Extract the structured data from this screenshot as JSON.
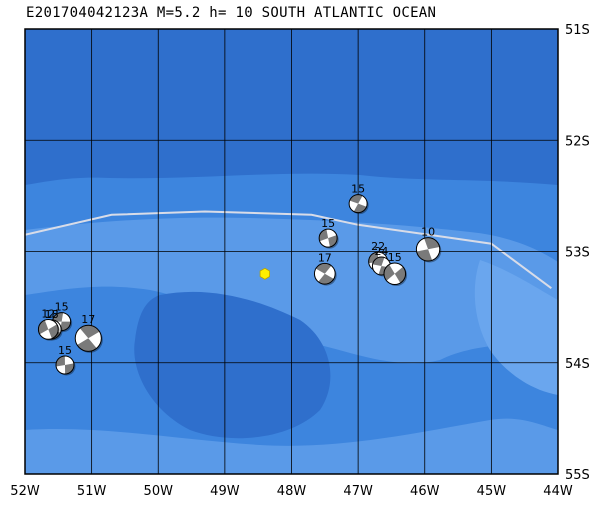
{
  "title": "E201704042123A M=5.2 h= 10 SOUTH ATLANTIC OCEAN",
  "event_id": "E201704042123A",
  "magnitude": 5.2,
  "depth_km": 10,
  "region": "SOUTH ATLANTIC OCEAN",
  "map": {
    "lon_range": [
      -52,
      -44
    ],
    "lat_range": [
      -55,
      -51
    ],
    "longitude_ticks": [
      {
        "value": -52,
        "label": "52W"
      },
      {
        "value": -51,
        "label": "51W"
      },
      {
        "value": -50,
        "label": "50W"
      },
      {
        "value": -49,
        "label": "49W"
      },
      {
        "value": -48,
        "label": "48W"
      },
      {
        "value": -47,
        "label": "47W"
      },
      {
        "value": -46,
        "label": "46W"
      },
      {
        "value": -45,
        "label": "45W"
      },
      {
        "value": -44,
        "label": "44W"
      }
    ],
    "latitude_ticks": [
      {
        "value": -51,
        "label": "51S"
      },
      {
        "value": -52,
        "label": "52S"
      },
      {
        "value": -53,
        "label": "53S"
      },
      {
        "value": -54,
        "label": "54S"
      },
      {
        "value": -55,
        "label": "55S"
      }
    ],
    "colors": {
      "ocean_deep": "#2f6fcc",
      "ocean_mid": "#3d85de",
      "ocean_shallow": "#5a9ae8",
      "plate_boundary": "#d8dce8",
      "grid": "#000000",
      "epicenter": "#ffee00"
    }
  },
  "epicenter": {
    "lon": -48.4,
    "lat": -53.2
  },
  "plate_boundary": [
    [
      -52,
      -52.85
    ],
    [
      -50.7,
      -52.67
    ],
    [
      -49.3,
      -52.64
    ],
    [
      -47.7,
      -52.67
    ],
    [
      -47.0,
      -52.76
    ],
    [
      -45.7,
      -52.87
    ],
    [
      -45.0,
      -52.93
    ],
    [
      -44.1,
      -53.33
    ]
  ],
  "mechanisms": [
    {
      "lon": -47.0,
      "lat": -52.57,
      "depth": "15",
      "size": 1.0,
      "rot": 200
    },
    {
      "lon": -47.45,
      "lat": -52.88,
      "depth": "15",
      "size": 1.0,
      "rot": 160
    },
    {
      "lon": -46.7,
      "lat": -53.09,
      "depth": "22",
      "size": 1.05,
      "rot": 170
    },
    {
      "lon": -46.65,
      "lat": -53.13,
      "depth": "24",
      "size": 1.0,
      "rot": 190
    },
    {
      "lon": -45.95,
      "lat": -52.98,
      "depth": "10",
      "size": 1.3,
      "rot": 250
    },
    {
      "lon": -46.45,
      "lat": -53.2,
      "depth": "15",
      "size": 1.2,
      "rot": 140
    },
    {
      "lon": -47.5,
      "lat": -53.2,
      "depth": "17",
      "size": 1.15,
      "rot": 210
    },
    {
      "lon": -51.45,
      "lat": -53.63,
      "depth": "15",
      "size": 1.0,
      "rot": 180
    },
    {
      "lon": -51.6,
      "lat": -53.7,
      "depth": "18",
      "size": 1.05,
      "rot": 200
    },
    {
      "lon": -51.65,
      "lat": -53.7,
      "depth": "12",
      "size": 1.1,
      "rot": 150
    },
    {
      "lon": -51.05,
      "lat": -53.78,
      "depth": "17",
      "size": 1.45,
      "rot": 230
    },
    {
      "lon": -51.4,
      "lat": -54.02,
      "depth": "15",
      "size": 1.0,
      "rot": 170
    }
  ]
}
